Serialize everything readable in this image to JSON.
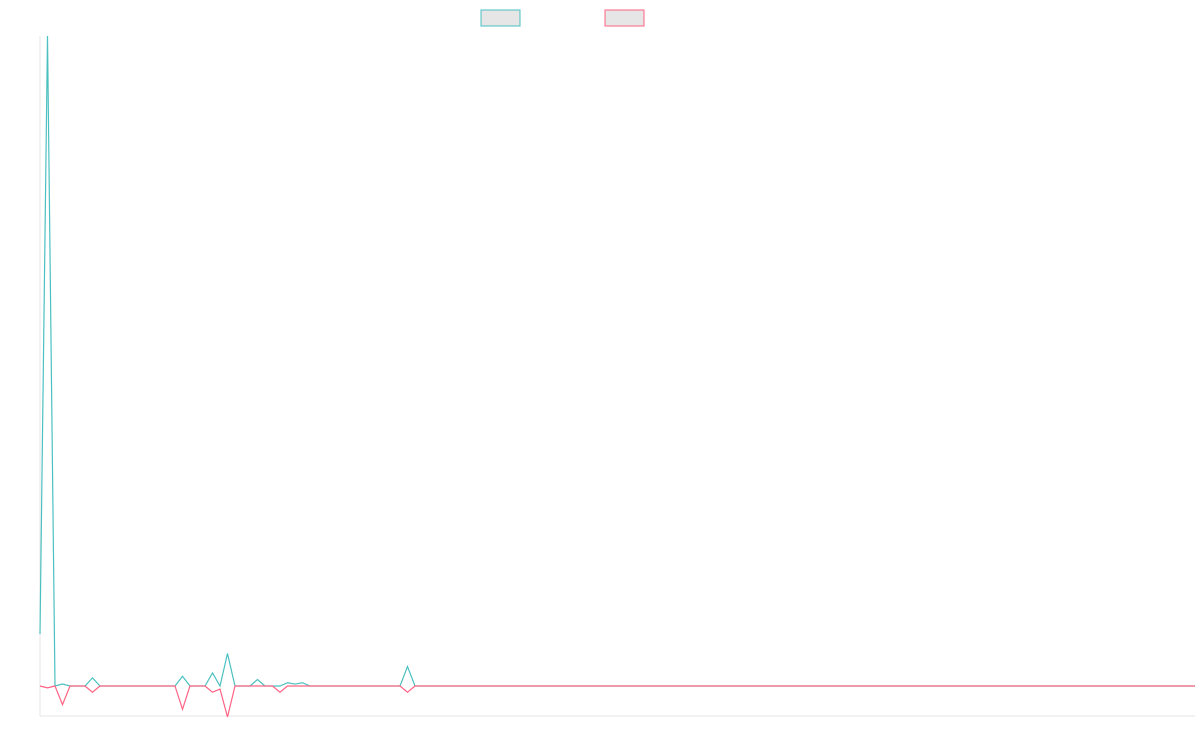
{
  "chart_data": {
    "type": "line",
    "title": "",
    "xlabel": "",
    "ylabel": "",
    "legend_placement": "top-center",
    "grid": false,
    "x_count": 155,
    "ylim": [
      -1,
      20
    ],
    "series": [
      {
        "name": "",
        "color": "#4bc0c0",
        "legend_fill": "#e6e6e6",
        "points": [
          [
            0,
            1.6
          ],
          [
            1,
            20
          ],
          [
            2,
            0
          ],
          [
            3,
            0.06
          ],
          [
            4,
            0
          ],
          [
            5,
            0
          ],
          [
            6,
            0
          ],
          [
            7,
            0.25
          ],
          [
            8,
            0
          ],
          [
            9,
            0
          ],
          [
            10,
            0
          ],
          [
            11,
            0
          ],
          [
            12,
            0
          ],
          [
            13,
            0
          ],
          [
            14,
            0
          ],
          [
            15,
            0
          ],
          [
            16,
            0
          ],
          [
            17,
            0
          ],
          [
            18,
            0
          ],
          [
            19,
            0.3
          ],
          [
            20,
            0
          ],
          [
            21,
            0
          ],
          [
            22,
            0
          ],
          [
            23,
            0.4
          ],
          [
            24,
            0
          ],
          [
            25,
            1
          ],
          [
            26,
            0
          ],
          [
            27,
            0
          ],
          [
            28,
            0
          ],
          [
            29,
            0.2
          ],
          [
            30,
            0
          ],
          [
            31,
            0
          ],
          [
            32,
            0
          ],
          [
            33,
            0.1
          ],
          [
            34,
            0.06
          ],
          [
            35,
            0.1
          ],
          [
            36,
            0
          ],
          [
            37,
            0
          ],
          [
            38,
            0
          ],
          [
            39,
            0
          ],
          [
            40,
            0
          ],
          [
            41,
            0
          ],
          [
            42,
            0
          ],
          [
            43,
            0
          ],
          [
            44,
            0
          ],
          [
            45,
            0
          ],
          [
            46,
            0
          ],
          [
            47,
            0
          ],
          [
            48,
            0
          ],
          [
            49,
            0.6
          ],
          [
            50,
            0
          ],
          [
            51,
            0
          ],
          [
            154,
            0
          ]
        ]
      },
      {
        "name": "",
        "color": "#ff6384",
        "legend_fill": "#e6e6e6",
        "points": [
          [
            0,
            0
          ],
          [
            1,
            -0.06
          ],
          [
            2,
            0
          ],
          [
            3,
            -0.6
          ],
          [
            4,
            0
          ],
          [
            5,
            0
          ],
          [
            6,
            0
          ],
          [
            7,
            -0.2
          ],
          [
            8,
            0
          ],
          [
            9,
            0
          ],
          [
            10,
            0
          ],
          [
            11,
            0
          ],
          [
            12,
            0
          ],
          [
            13,
            0
          ],
          [
            14,
            0
          ],
          [
            15,
            0
          ],
          [
            16,
            0
          ],
          [
            17,
            0
          ],
          [
            18,
            0
          ],
          [
            19,
            -0.75
          ],
          [
            20,
            0
          ],
          [
            21,
            0
          ],
          [
            22,
            0
          ],
          [
            23,
            -0.2
          ],
          [
            24,
            -0.1
          ],
          [
            25,
            -1
          ],
          [
            26,
            0
          ],
          [
            27,
            0
          ],
          [
            28,
            0
          ],
          [
            29,
            0
          ],
          [
            30,
            0
          ],
          [
            31,
            0
          ],
          [
            32,
            -0.2
          ],
          [
            33,
            0
          ],
          [
            34,
            0
          ],
          [
            35,
            0
          ],
          [
            36,
            0
          ],
          [
            37,
            0
          ],
          [
            38,
            0
          ],
          [
            39,
            0
          ],
          [
            40,
            0
          ],
          [
            41,
            0
          ],
          [
            42,
            0
          ],
          [
            43,
            0
          ],
          [
            44,
            0
          ],
          [
            45,
            0
          ],
          [
            46,
            0
          ],
          [
            47,
            0
          ],
          [
            48,
            0
          ],
          [
            49,
            -0.2
          ],
          [
            50,
            0
          ],
          [
            51,
            0
          ],
          [
            154,
            0
          ]
        ]
      }
    ]
  }
}
